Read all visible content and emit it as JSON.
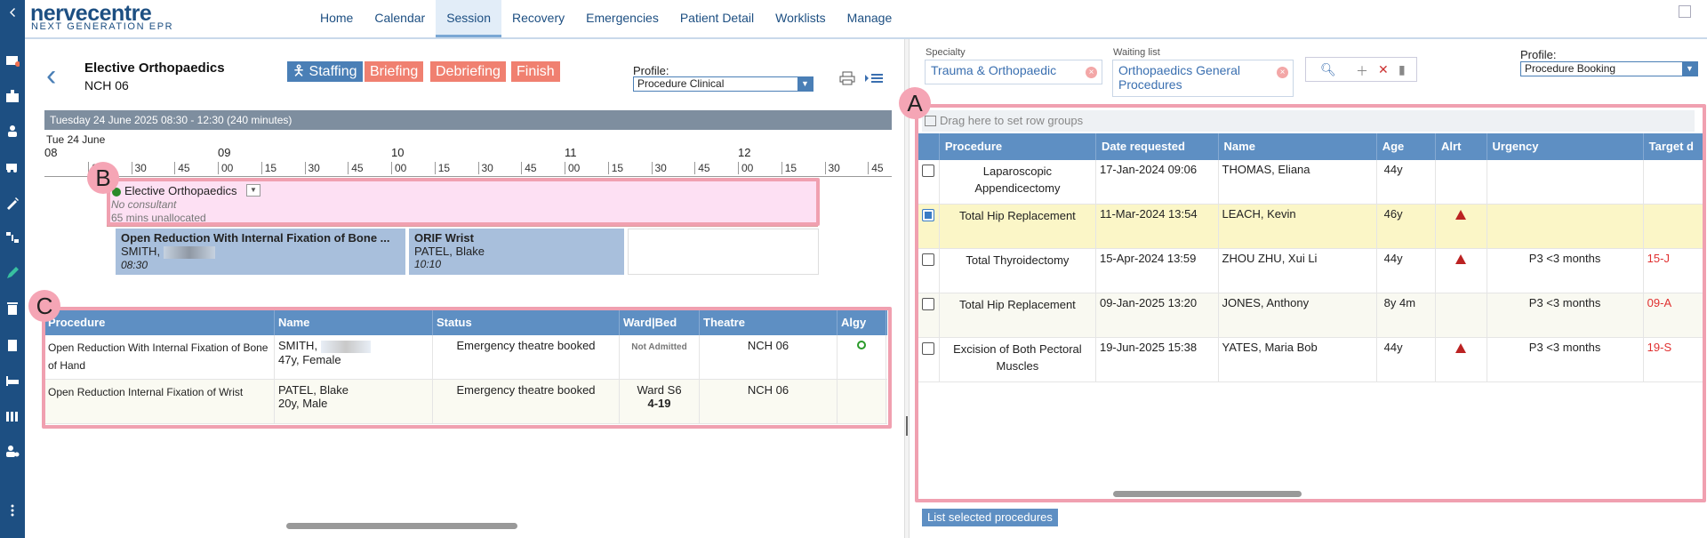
{
  "app": {
    "logo": "nervecentre",
    "logo_sub": "NEXT GENERATION EPR"
  },
  "nav": [
    "Home",
    "Calendar",
    "Session",
    "Recovery",
    "Emergencies",
    "Patient Detail",
    "Worklists",
    "Manage"
  ],
  "nav_active": "Session",
  "rail_icons": [
    "chevron-left-icon",
    "mail-icon",
    "hospital-icon",
    "person-icon",
    "ambulance-icon",
    "syringe-icon",
    "pathway-icon",
    "pen-icon",
    "trash-icon",
    "clipboard-icon",
    "bed-icon",
    "library-icon",
    "user-settings-icon",
    "more-icon"
  ],
  "session": {
    "title": "Elective Orthopaedics",
    "theatre": "NCH 06",
    "buttons": {
      "staffing": "Staffing",
      "briefing": "Briefing",
      "debriefing": "Debriefing",
      "finish": "Finish"
    },
    "profile_label": "Profile:",
    "profile_value": "Procedure Clinical",
    "header_bar": "Tuesday 24 June 2025     08:30 - 12:30 (240 minutes)",
    "timeline_date": "Tue 24 June",
    "hours": [
      "08",
      "09",
      "10",
      "11",
      "12"
    ],
    "block": {
      "name": "Elective Orthopaedics",
      "consultant": "No consultant",
      "unallocated": "65 mins unallocated"
    },
    "cases": [
      {
        "title": "Open Reduction With Internal Fixation of Bone ...",
        "patient": "SMITH,",
        "time": "08:30"
      },
      {
        "title": "ORIF Wrist",
        "patient": "PATEL, Blake",
        "time": "10:10"
      }
    ]
  },
  "left_table": {
    "columns": [
      "Procedure",
      "Name",
      "Status",
      "Ward|Bed",
      "Theatre",
      "Algy"
    ],
    "rows": [
      {
        "procedure": "Open Reduction With Internal Fixation of Bone of Hand",
        "name": "SMITH,",
        "demo": "47y, Female",
        "status": "Emergency theatre booked",
        "ward": "Not Admitted",
        "bed": "",
        "theatre": "NCH 06"
      },
      {
        "procedure": "Open Reduction Internal Fixation of Wrist",
        "name": "PATEL, Blake",
        "demo": "20y, Male",
        "status": "Emergency theatre booked",
        "ward": "Ward S6",
        "bed": "4-19",
        "theatre": "NCH 06"
      }
    ]
  },
  "annotations": {
    "a": "A",
    "b": "B",
    "c": "C"
  },
  "right": {
    "specialty_label": "Specialty",
    "specialty_value": "Trauma & Orthopaedic",
    "waiting_label": "Waiting list",
    "waiting_value": "Orthopaedics General Procedures",
    "profile_label": "Profile:",
    "profile_value": "Procedure Booking",
    "group_hint": "Drag here to set row groups",
    "columns": [
      "Procedure",
      "Date requested",
      "Name",
      "Age",
      "Alrt",
      "Urgency",
      "Target d"
    ],
    "rows": [
      {
        "checked": false,
        "procedure": "Laparoscopic Appendicectomy",
        "date": "17-Jan-2024 09:06",
        "name": "THOMAS, Eliana",
        "age": "44y",
        "alert": false,
        "urgency": "",
        "target": ""
      },
      {
        "checked": true,
        "procedure": "Total Hip Replacement",
        "date": "11-Mar-2024 13:54",
        "name": "LEACH, Kevin",
        "age": "46y",
        "alert": true,
        "urgency": "",
        "target": ""
      },
      {
        "checked": false,
        "procedure": "Total Thyroidectomy",
        "date": "15-Apr-2024 13:59",
        "name": "ZHOU ZHU, Xui Li",
        "age": "44y",
        "alert": true,
        "urgency": "P3 <3 months",
        "target": "15-J"
      },
      {
        "checked": false,
        "procedure": "Total Hip Replacement",
        "date": "09-Jan-2025 13:20",
        "name": "JONES, Anthony",
        "age": "8y 4m",
        "alert": false,
        "urgency": "P3 <3 months",
        "target": "09-A"
      },
      {
        "checked": false,
        "procedure": "Excision of Both Pectoral Muscles",
        "date": "19-Jun-2025 15:38",
        "name": "YATES, Maria Bob",
        "age": "44y",
        "alert": true,
        "urgency": "P3 <3 months",
        "target": "19-S"
      }
    ],
    "list_button": "List selected procedures"
  }
}
